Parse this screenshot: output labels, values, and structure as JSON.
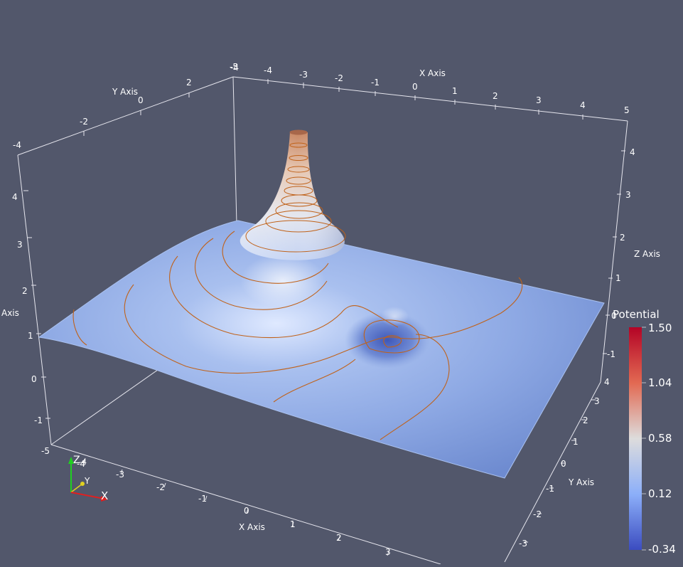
{
  "scene": {
    "background": "#52576b",
    "surface_color": "#7d9bd8",
    "contour_color": "#c0621a",
    "axis_color": "#e6e6ee",
    "bounding_box": {
      "x_range": [
        -5,
        5
      ],
      "y_range": [
        -4,
        4
      ],
      "z_range": [
        -1,
        4
      ]
    }
  },
  "axes": {
    "top_x": {
      "title": "X Axis",
      "ticks": [
        "-5",
        "-4",
        "-3",
        "-2",
        "-1",
        "0",
        "1",
        "2",
        "3",
        "4",
        "5"
      ]
    },
    "top_y": {
      "title": "Y Axis",
      "ticks": [
        "-4",
        "-2",
        "0",
        "2"
      ]
    },
    "right_z": {
      "title": "Z Axis",
      "ticks": [
        "-1",
        "0",
        "1",
        "2",
        "3",
        "4"
      ]
    },
    "left_z": {
      "title": "Axis",
      "ticks": [
        "-1",
        "0",
        "1",
        "2",
        "3",
        "4"
      ]
    },
    "bottom_x": {
      "title": "X Axis",
      "ticks": [
        "-5",
        "-4",
        "-3",
        "-2",
        "-1",
        "0",
        "1",
        "2",
        "3"
      ]
    },
    "bottom_y": {
      "title": "Y Axis",
      "ticks": [
        "-3",
        "-2",
        "-1",
        "0",
        "1",
        "2",
        "3",
        "4"
      ]
    }
  },
  "legend": {
    "title": "Potential",
    "labels": [
      "1.50",
      "1.04",
      "0.58",
      "0.12",
      "-0.34"
    ],
    "colors": [
      "#b40426",
      "#e26952",
      "#dddcdc",
      "#8caff9",
      "#3b4cc0"
    ]
  },
  "orientation_widget": {
    "x": {
      "label": "X",
      "color": "#e02020"
    },
    "y": {
      "label": "Y",
      "color": "#e0d020"
    },
    "z": {
      "label": "Z",
      "color": "#20d020"
    }
  }
}
